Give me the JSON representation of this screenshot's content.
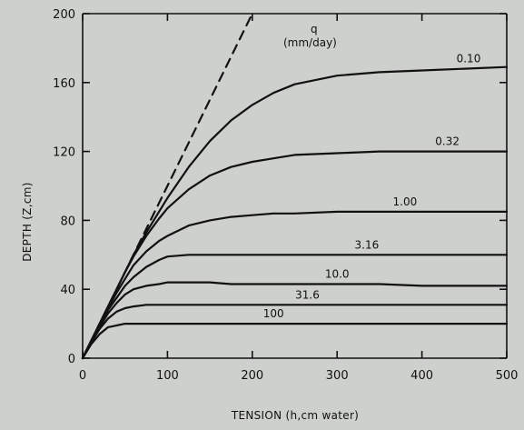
{
  "chart_data": {
    "type": "line",
    "title": "",
    "xlabel": "TENSION (h,cm water)",
    "ylabel": "DEPTH (Z,cm)",
    "xlim": [
      0,
      500
    ],
    "ylim": [
      0,
      200
    ],
    "x_ticks": [
      0,
      100,
      200,
      300,
      400,
      500
    ],
    "y_ticks": [
      0,
      40,
      80,
      120,
      160,
      200
    ],
    "grid": false,
    "legend_title_symbol": "q",
    "legend_title_unit": "(mm/day)",
    "legend_placement": "top-center",
    "dashed_line": {
      "x": [
        0,
        200
      ],
      "y": [
        0,
        200
      ]
    },
    "x": [
      0,
      10,
      20,
      30,
      40,
      50,
      60,
      75,
      90,
      100,
      125,
      150,
      175,
      200,
      225,
      250,
      300,
      350,
      400,
      450,
      500
    ],
    "series": [
      {
        "label": "0.10",
        "values": [
          0,
          10,
          20,
          30,
          40,
          50,
          60,
          73,
          85,
          93,
          111,
          126,
          138,
          147,
          154,
          159,
          164,
          166,
          167,
          168,
          169
        ]
      },
      {
        "label": "0.32",
        "values": [
          0,
          10,
          20,
          30,
          40,
          50,
          59,
          71,
          81,
          87,
          98,
          106,
          111,
          114,
          116,
          118,
          119,
          120,
          120,
          120,
          120
        ]
      },
      {
        "label": "1.00",
        "values": [
          0,
          10,
          20,
          29,
          38,
          46,
          54,
          62,
          68,
          71,
          77,
          80,
          82,
          83,
          84,
          84,
          85,
          85,
          85,
          85,
          85
        ]
      },
      {
        "label": "3.16",
        "values": [
          0,
          10,
          19,
          28,
          35,
          42,
          47,
          53,
          57,
          59,
          60,
          60,
          60,
          60,
          60,
          60,
          60,
          60,
          60,
          60,
          60
        ]
      },
      {
        "label": "10.0",
        "values": [
          0,
          9,
          18,
          26,
          32,
          37,
          40,
          42,
          43,
          44,
          44,
          44,
          43,
          43,
          43,
          43,
          43,
          43,
          42,
          42,
          42
        ]
      },
      {
        "label": "31.6",
        "values": [
          0,
          9,
          17,
          23,
          27,
          29,
          30,
          31,
          31,
          31,
          31,
          31,
          31,
          31,
          31,
          31,
          31,
          31,
          31,
          31,
          31
        ]
      },
      {
        "label": "100",
        "values": [
          0,
          8,
          14,
          18,
          19,
          20,
          20,
          20,
          20,
          20,
          20,
          20,
          20,
          20,
          20,
          20,
          20,
          20,
          20,
          20,
          20
        ]
      }
    ]
  }
}
